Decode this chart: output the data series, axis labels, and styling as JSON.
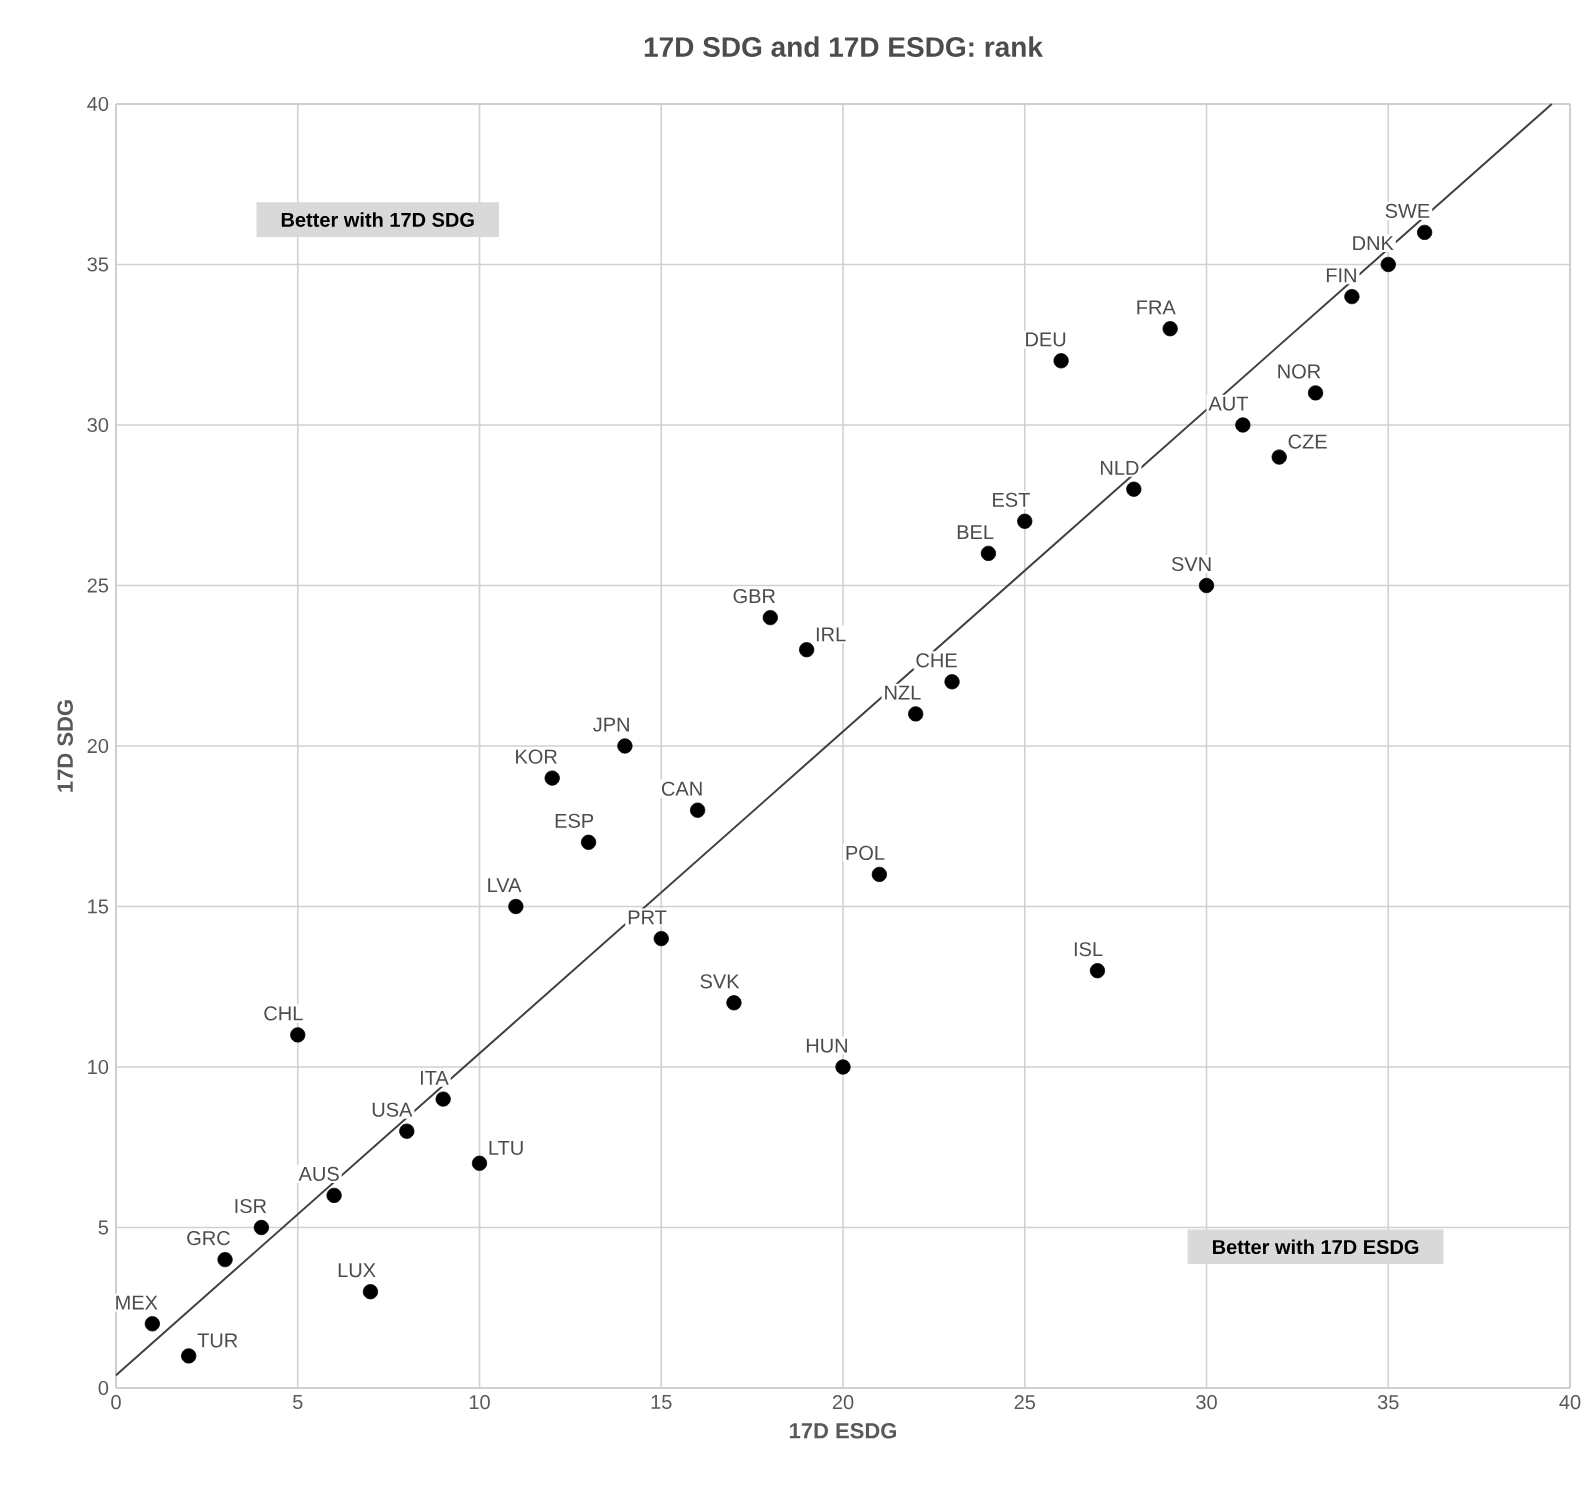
{
  "chart_data": {
    "type": "scatter",
    "title": "17D SDG and 17D ESDG: rank",
    "xlabel": "17D ESDG",
    "ylabel": "17D SDG",
    "xlim": [
      0,
      40
    ],
    "ylim": [
      0,
      40
    ],
    "xticks": [
      0,
      5,
      10,
      15,
      20,
      25,
      30,
      35,
      40
    ],
    "yticks": [
      0,
      5,
      10,
      15,
      20,
      25,
      30,
      35,
      40
    ],
    "grid": true,
    "series": [
      {
        "type": "scatter",
        "marker": "circle",
        "color": "#000000",
        "x": [
          1,
          2,
          3,
          4,
          6,
          7,
          5,
          8,
          9,
          10,
          11,
          12,
          13,
          14,
          15,
          16,
          17,
          18,
          19,
          20,
          21,
          22,
          23,
          24,
          25,
          26,
          27,
          28,
          29,
          30,
          31,
          32,
          33,
          34,
          35,
          36
        ],
        "values": [
          2,
          1,
          4,
          5,
          6,
          3,
          11,
          8,
          9,
          7,
          15,
          19,
          17,
          20,
          14,
          18,
          12,
          24,
          23,
          10,
          16,
          21,
          22,
          26,
          27,
          32,
          13,
          28,
          33,
          25,
          30,
          29,
          31,
          34,
          35,
          36
        ]
      },
      {
        "type": "line",
        "color": "#404040",
        "marker": "none",
        "x": [
          0,
          39.5
        ],
        "values": [
          0.4,
          40
        ]
      }
    ],
    "annotations": [
      "Better with 17D SDG",
      "Better with 17D ESDG",
      {
        "text": "MEX",
        "x": 1,
        "y": 2
      },
      {
        "text": "TUR",
        "x": 2,
        "y": 1
      },
      {
        "text": "GRC",
        "x": 3,
        "y": 4
      },
      {
        "text": "ISR",
        "x": 4,
        "y": 5
      },
      {
        "text": "AUS",
        "x": 6,
        "y": 6
      },
      {
        "text": "LUX",
        "x": 7,
        "y": 3
      },
      {
        "text": "CHL",
        "x": 5,
        "y": 11
      },
      {
        "text": "USA",
        "x": 8,
        "y": 8
      },
      {
        "text": "ITA",
        "x": 9,
        "y": 9
      },
      {
        "text": "LTU",
        "x": 10,
        "y": 7
      },
      {
        "text": "LVA",
        "x": 11,
        "y": 15
      },
      {
        "text": "KOR",
        "x": 12,
        "y": 19
      },
      {
        "text": "ESP",
        "x": 13,
        "y": 17
      },
      {
        "text": "JPN",
        "x": 14,
        "y": 20
      },
      {
        "text": "PRT",
        "x": 15,
        "y": 14
      },
      {
        "text": "CAN",
        "x": 16,
        "y": 18
      },
      {
        "text": "SVK",
        "x": 17,
        "y": 12
      },
      {
        "text": "GBR",
        "x": 18,
        "y": 24
      },
      {
        "text": "IRL",
        "x": 19,
        "y": 23
      },
      {
        "text": "HUN",
        "x": 20,
        "y": 10
      },
      {
        "text": "POL",
        "x": 21,
        "y": 16
      },
      {
        "text": "NZL",
        "x": 22,
        "y": 21
      },
      {
        "text": "CHE",
        "x": 23,
        "y": 22
      },
      {
        "text": "BEL",
        "x": 24,
        "y": 26
      },
      {
        "text": "EST",
        "x": 25,
        "y": 27
      },
      {
        "text": "DEU",
        "x": 26,
        "y": 32
      },
      {
        "text": "ISL",
        "x": 27,
        "y": 13
      },
      {
        "text": "NLD",
        "x": 28,
        "y": 28
      },
      {
        "text": "FRA",
        "x": 29,
        "y": 33
      },
      {
        "text": "SVN",
        "x": 30,
        "y": 25
      },
      {
        "text": "AUT",
        "x": 31,
        "y": 30
      },
      {
        "text": "CZE",
        "x": 32,
        "y": 29
      },
      {
        "text": "NOR",
        "x": 33,
        "y": 31
      },
      {
        "text": "FIN",
        "x": 34,
        "y": 34
      },
      {
        "text": "DNK",
        "x": 35,
        "y": 35
      },
      {
        "text": "SWE",
        "x": 36,
        "y": 36
      }
    ]
  }
}
